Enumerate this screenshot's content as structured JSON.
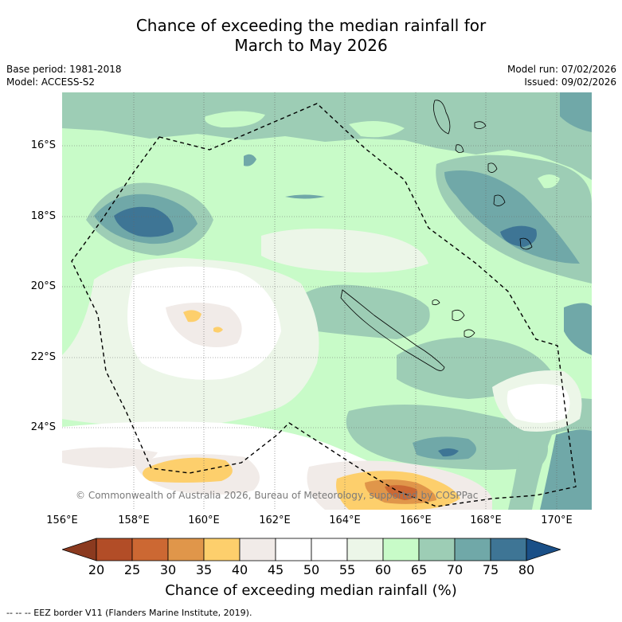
{
  "title_line1": "Chance of exceeding the median rainfall for",
  "title_line2": "March to May 2026",
  "base_period": "Base period: 1981-2018",
  "model": "Model: ACCESS-S2",
  "model_run": "Model run: 07/02/2026",
  "issued": "Issued: 09/02/2026",
  "copyright": "© Commonwealth of Australia 2026, Bureau of Meteorology, supported by COSPPac",
  "lat_labels": [
    "16°S",
    "18°S",
    "20°S",
    "22°S",
    "24°S"
  ],
  "lon_labels": [
    "156°E",
    "158°E",
    "160°E",
    "162°E",
    "164°E",
    "166°E",
    "168°E",
    "170°E"
  ],
  "colorbar": {
    "labels": [
      "20",
      "25",
      "30",
      "35",
      "40",
      "45",
      "50",
      "55",
      "60",
      "65",
      "70",
      "75",
      "80"
    ],
    "colors": [
      "#8b3a1f",
      "#b24d27",
      "#cc6833",
      "#e0964a",
      "#fdcf6c",
      "#f1ebe8",
      "#ffffff",
      "#ffffff",
      "#ecf6e8",
      "#c8fbc8",
      "#9dcdb5",
      "#70a8a8",
      "#3e7595",
      "#1a4f87"
    ],
    "title": "Chance of exceeding median rainfall (%)"
  },
  "legend_text": "-- -- -- EEZ border V11 (Flanders Marine Institute, 2019)."
}
